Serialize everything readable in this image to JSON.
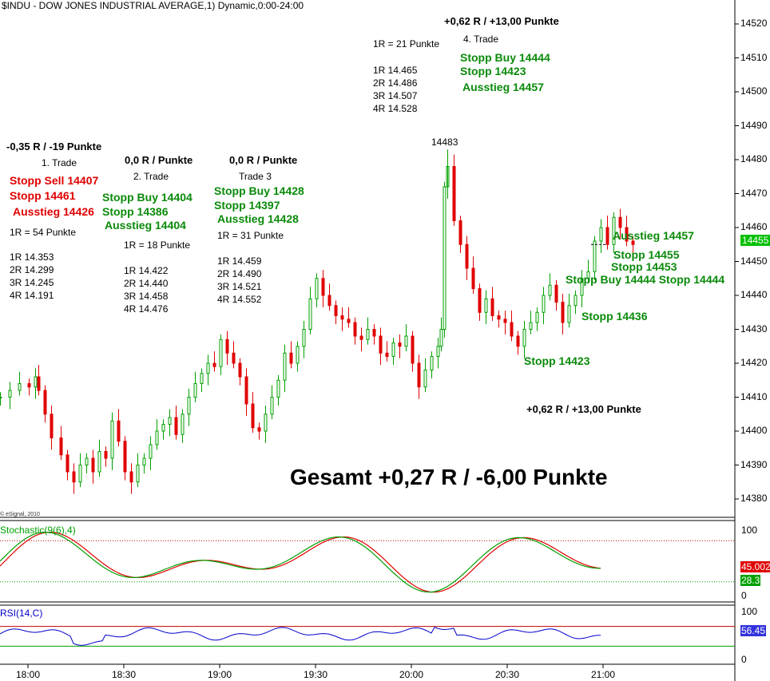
{
  "title": "$INDU - DOW JONES INDUSTRIAL AVERAGE,1) Dynamic,0:00-24:00",
  "copyright": "© eSignal, 2010",
  "chart_data": {
    "type": "candlestick",
    "price": {
      "y_ticks": [
        "14520",
        "14510",
        "14500",
        "14490",
        "14480",
        "14470",
        "14460",
        "14450",
        "14440",
        "14430",
        "14420",
        "14410",
        "14400",
        "14390",
        "14380"
      ],
      "ylim": [
        14377,
        14526
      ],
      "last_price": "14455",
      "last_color": "#00c000",
      "up_color": "#00a000",
      "down_color": "#e00000",
      "annotations": {
        "total": "Gesamt +0,27 R /  -6,00 Punkte",
        "high_label": "14483",
        "trade1": {
          "header": "-0,35 R /  -19 Punkte",
          "name": "1. Trade",
          "stop_sell": "Stopp Sell 14407",
          "stop": "Stopp 14461",
          "exit": "Ausstieg 14426",
          "r": "1R = 54 Punkte",
          "levels": "1R 14.353\n2R 14.299\n3R 14.245\n4R 14.191"
        },
        "trade2": {
          "header": "0,0 R /  Punkte",
          "name": "2. Trade",
          "stop_buy": "Stopp Buy 14404",
          "stop": "Stopp 14386",
          "exit": "Ausstieg 14404",
          "r": "1R = 18 Punkte",
          "levels": "1R 14.422\n2R 14.440\n3R 14.458\n4R 14.476"
        },
        "trade3": {
          "header": "0,0 R /  Punkte",
          "name": "Trade 3",
          "stop_buy": "Stopp Buy 14428",
          "stop": "Stopp 14397",
          "exit": "Ausstieg 14428",
          "r": "1R = 31 Punkte",
          "levels": "1R 14.459\n2R 14.490\n3R 14.521\n4R 14.552"
        },
        "trade4": {
          "header": "+0,62 R /  +13,00 Punkte",
          "name": "4. Trade",
          "r": "1R = 21 Punkte",
          "levels": "1R 14.465\n2R 14.486\n3R 14.507\n4R 14.528",
          "stop_buy": "Stopp Buy 14444",
          "stop": "Stopp 14423",
          "exit": "Ausstieg 14457"
        },
        "right": {
          "exit": "Ausstieg 14457",
          "stop1": "Stopp 14455",
          "stop2": "Stopp 14453",
          "stop_buy": "Stopp Buy 14444 Stopp 14444",
          "stop3": "Stopp 14436",
          "stop4": "Stopp 14423",
          "result": "+0,62 R /  +13,00 Punkte"
        }
      }
    },
    "stochastic": {
      "label": "Stochastic(9(6),4)",
      "y_ticks": [
        "100",
        "0"
      ],
      "values": [
        "45.002",
        "28.3"
      ],
      "colors": [
        "#e00000",
        "#00a000"
      ],
      "levels": [
        80,
        20
      ]
    },
    "rsi": {
      "label": "RSI(14,C)",
      "y_ticks": [
        "100",
        "0"
      ],
      "value": "56.45",
      "color": "#0000cc",
      "levels": [
        70,
        30
      ]
    },
    "x_ticks": [
      "18:00",
      "18:30",
      "19:00",
      "19:30",
      "20:00",
      "20:30",
      "21:00"
    ]
  }
}
